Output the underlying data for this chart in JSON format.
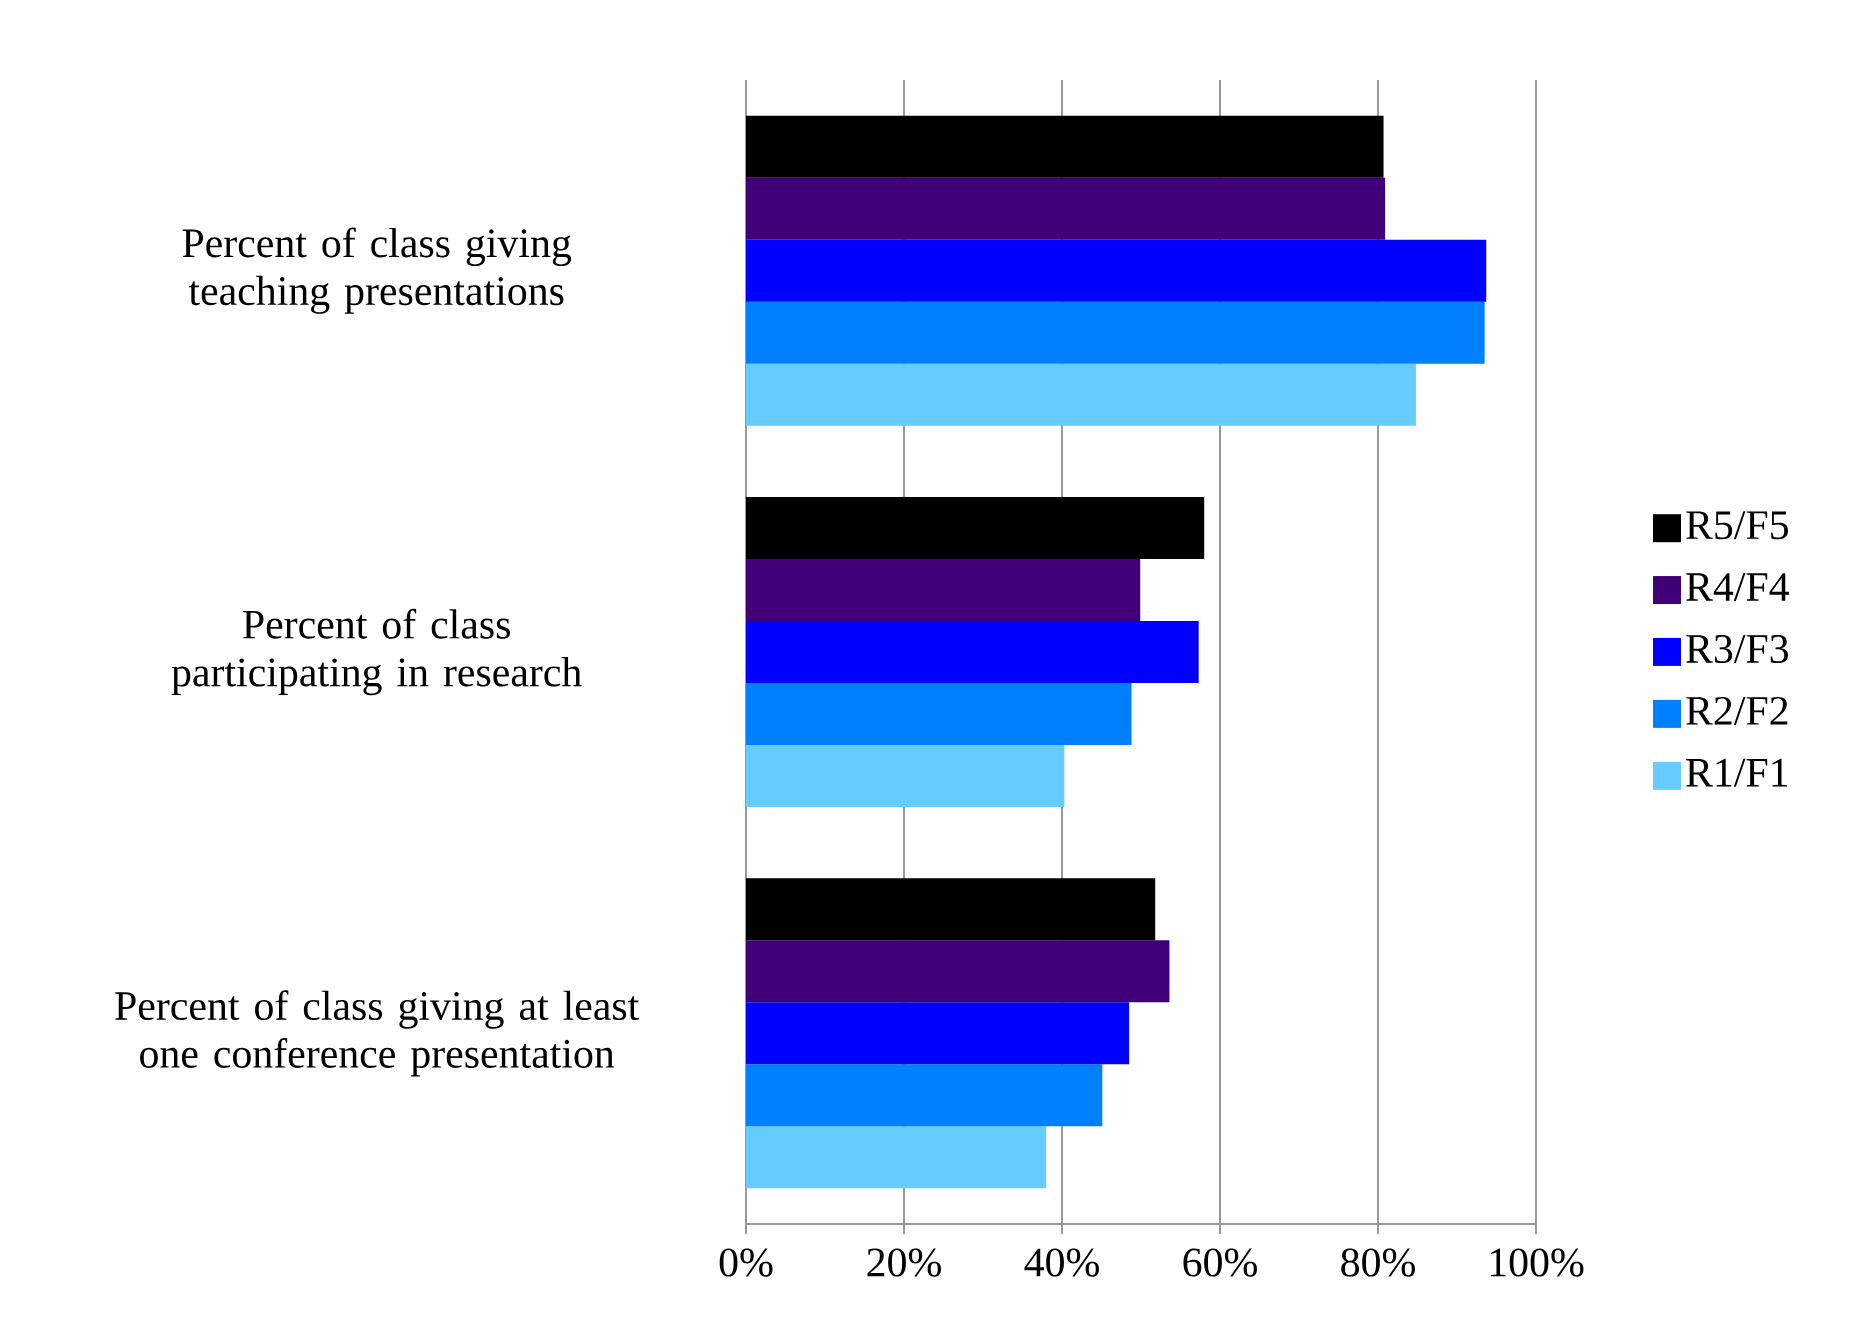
{
  "chart_data": {
    "type": "bar",
    "orientation": "horizontal",
    "categories": [
      "Percent of class giving teaching presentations",
      "Percent of class participating in research",
      "Percent of class giving at least one conference presentation"
    ],
    "series": [
      {
        "name": "R5/F5",
        "color": "#000000",
        "values": [
          80.7,
          58.0,
          51.8
        ]
      },
      {
        "name": "R4/F4",
        "color": "#420078",
        "values": [
          80.9,
          49.9,
          53.6
        ]
      },
      {
        "name": "R3/F3",
        "color": "#0000ff",
        "values": [
          93.7,
          57.3,
          48.5
        ]
      },
      {
        "name": "R2/F2",
        "color": "#0080ff",
        "values": [
          93.5,
          48.8,
          45.1
        ]
      },
      {
        "name": "R1/F1",
        "color": "#66ccff",
        "values": [
          84.8,
          40.3,
          38.0
        ]
      }
    ],
    "xlim": [
      0,
      100
    ],
    "xticks": [
      {
        "value": 0,
        "label": "0%"
      },
      {
        "value": 20,
        "label": "20%"
      },
      {
        "value": 40,
        "label": "40%"
      },
      {
        "value": 60,
        "label": "60%"
      },
      {
        "value": 80,
        "label": "80%"
      },
      {
        "value": 100,
        "label": "100%"
      }
    ],
    "grid": "x",
    "legend": "right"
  }
}
